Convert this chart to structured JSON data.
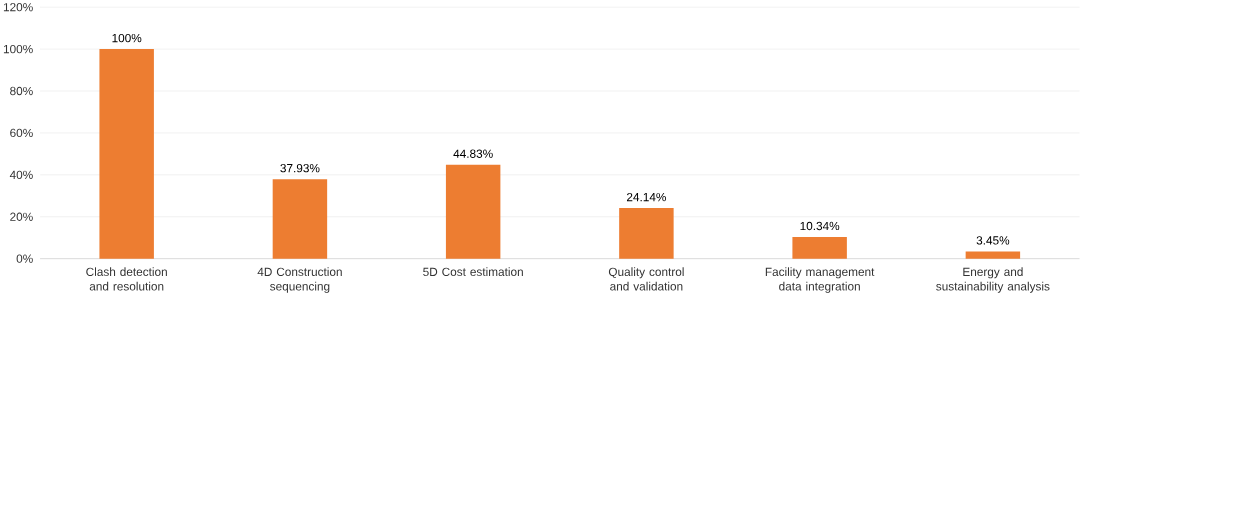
{
  "chart_data": {
    "type": "bar",
    "categories": [
      "Clash detection and resolution",
      "4D Construction sequencing",
      "5D Cost estimation",
      "Quality control and validation",
      "Facility management data integration",
      "Energy and sustainability analysis"
    ],
    "values": [
      100,
      37.93,
      44.83,
      24.14,
      10.34,
      3.45
    ],
    "value_labels": [
      "100%",
      "37.93%",
      "44.83%",
      "24.14%",
      "10.34%",
      "3.45%"
    ],
    "color": "#ed7d31",
    "ylim": [
      0,
      120
    ],
    "yticks": [
      {
        "value": 0,
        "label": "0%"
      },
      {
        "value": 20,
        "label": "20%"
      },
      {
        "value": 40,
        "label": "40%"
      },
      {
        "value": 60,
        "label": "60%"
      },
      {
        "value": 80,
        "label": "80%"
      },
      {
        "value": 100,
        "label": "100%"
      },
      {
        "value": 120,
        "label": "120%"
      }
    ],
    "grid": "y"
  }
}
